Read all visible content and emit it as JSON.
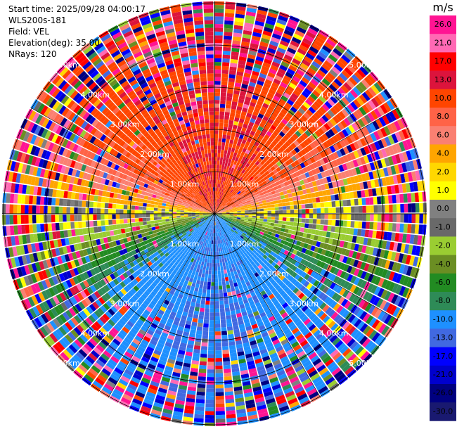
{
  "info": {
    "start_time": "Start time: 2025/09/28 04:00:17",
    "instrument": "WLS200s-181",
    "field": "Field: VEL",
    "elevation": "Elevation(deg): 35.00",
    "nrays": "NRays: 120"
  },
  "colorbar": {
    "unit": "m/s",
    "ticks": [
      "26.0",
      "21.0",
      "17.0",
      "13.0",
      "10.0",
      "8.0",
      "6.0",
      "4.0",
      "2.0",
      "1.0",
      "0.0",
      "-1.0",
      "-2.0",
      "-4.0",
      "-6.0",
      "-8.0",
      "-10.0",
      "-13.0",
      "-17.0",
      "-21.0",
      "-26.0",
      "-30.0"
    ],
    "colors": [
      "#ff1493",
      "#ff69b4",
      "#ff0000",
      "#dc143c",
      "#ff4500",
      "#ff6347",
      "#fa8072",
      "#ffa500",
      "#ffd700",
      "#ffff00",
      "#808080",
      "#696969",
      "#9acd32",
      "#6b8e23",
      "#228b22",
      "#2e8b57",
      "#1e90ff",
      "#4169e1",
      "#0000ff",
      "#0000cd",
      "#000080",
      "#191970"
    ]
  },
  "chart_data": {
    "type": "heatmap",
    "projection": "polar PPI (plan position indicator)",
    "field": "VEL",
    "units": "m/s",
    "elevation_deg": 35.0,
    "n_rays": 120,
    "range_rings_km": [
      1.0,
      2.0,
      3.0,
      4.0,
      5.0
    ],
    "ring_labels": [
      "1.00km",
      "2.00km",
      "3.00km",
      "4.00km",
      "5.00km"
    ],
    "max_range_km": 5.4,
    "velocity_pattern": {
      "toward_north_half_mps": [
        6,
        10
      ],
      "toward_south_half_mps": [
        -13,
        -6
      ],
      "near_east_west_mps": [
        -2,
        2
      ],
      "noise_beyond_km": 3.5
    }
  }
}
